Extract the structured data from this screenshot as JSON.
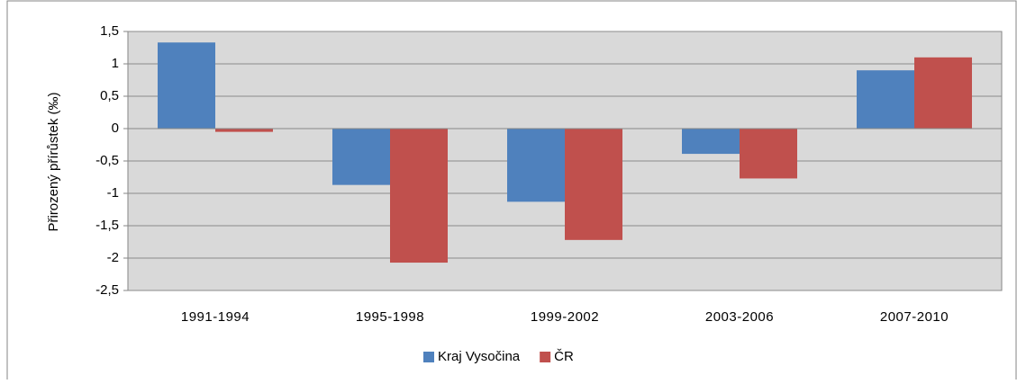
{
  "chart_data": {
    "type": "bar",
    "y_axis_label": "Přirozený přírůstek (‰)",
    "categories": [
      "1991-1994",
      "1995-1998",
      "1999-2002",
      "2003-2006",
      "2007-2010"
    ],
    "series": [
      {
        "name": "Kraj Vysočina",
        "color": "#4f81bd",
        "values": [
          1.33,
          -0.87,
          -1.13,
          -0.39,
          0.9
        ]
      },
      {
        "name": "ČR",
        "color": "#c0504d",
        "values": [
          -0.05,
          -2.07,
          -1.72,
          -0.77,
          1.1
        ]
      }
    ],
    "ylim": [
      -2.5,
      1.5
    ],
    "yticks": [
      {
        "value": -2.5,
        "label": "-2,5"
      },
      -2,
      {
        "value": -1.5,
        "label": "-1,5"
      },
      -1,
      {
        "value": -0.5,
        "label": "-0,5"
      },
      0,
      {
        "value": 0.5,
        "label": "0,5"
      },
      1,
      {
        "value": 1.5,
        "label": "1,5"
      }
    ],
    "grid": true,
    "legend": "bottom"
  }
}
